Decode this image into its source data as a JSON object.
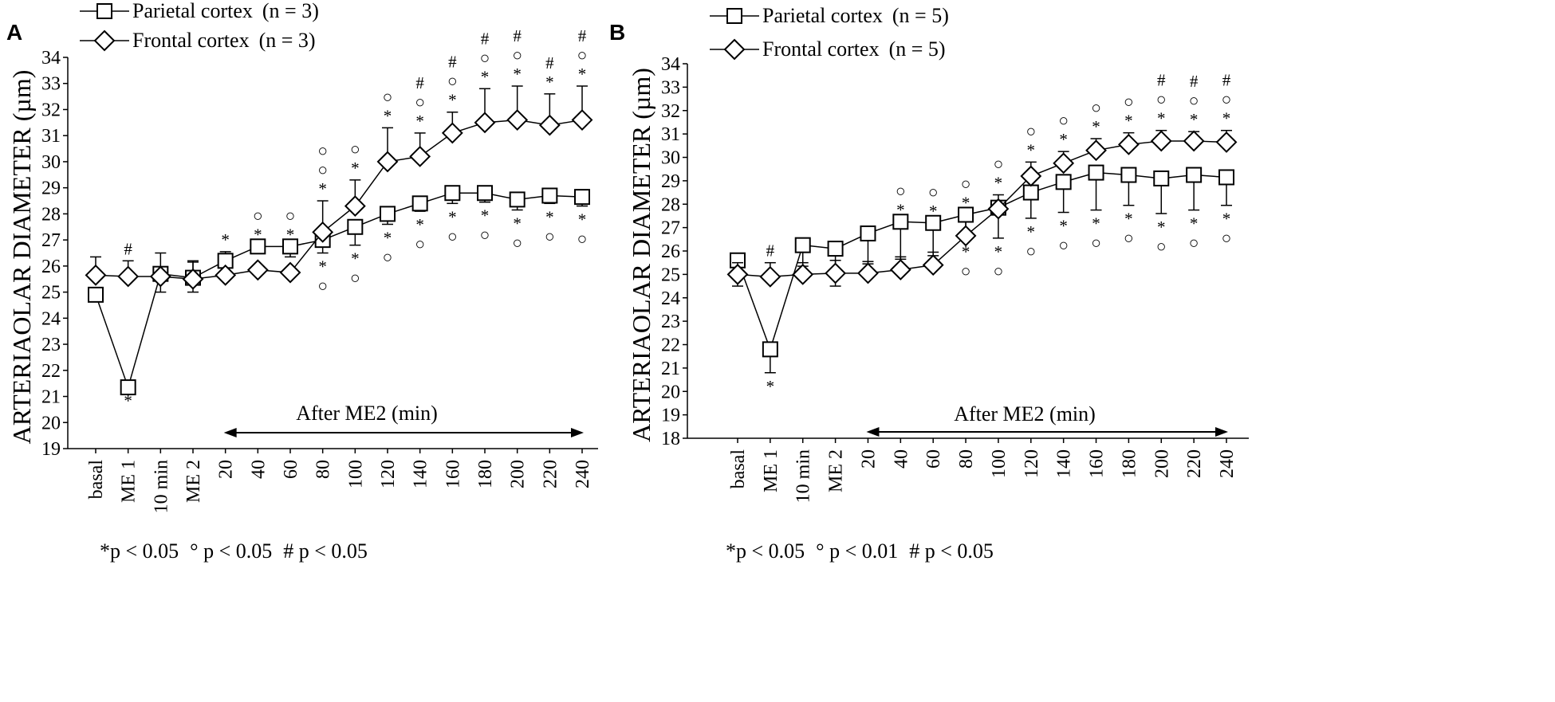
{
  "chart_data": [
    {
      "type": "line",
      "panel": "A",
      "ylabel": "ARTERIAOLAR DIAMETER (µm)",
      "ylim": [
        19,
        34
      ],
      "yticks": [
        19,
        20,
        21,
        22,
        23,
        24,
        25,
        26,
        27,
        28,
        29,
        30,
        31,
        32,
        33,
        34
      ],
      "categories": [
        "basal",
        "ME 1",
        "10 min",
        "ME 2",
        "20",
        "40",
        "60",
        "80",
        "100",
        "120",
        "140",
        "160",
        "180",
        "200",
        "220",
        "240"
      ],
      "series": [
        {
          "name": "Parietal cortex",
          "n_label": "(n = 3)",
          "marker": "square",
          "values": [
            24.9,
            21.35,
            25.7,
            25.55,
            26.2,
            26.75,
            26.75,
            27.0,
            27.5,
            28.0,
            28.4,
            28.8,
            28.8,
            28.55,
            28.7,
            28.65
          ],
          "err_up": [
            0,
            0,
            0.8,
            0.6,
            0.35,
            0,
            0,
            0,
            0,
            0,
            0,
            0,
            0,
            0,
            0,
            0
          ],
          "err_dn": [
            0,
            0,
            0,
            0,
            0,
            0,
            0.4,
            0.5,
            0.7,
            0.4,
            0.3,
            0.4,
            0.35,
            0.4,
            0.3,
            0.35
          ]
        },
        {
          "name": "Frontal cortex",
          "n_label": "(n = 3)",
          "marker": "diamond",
          "values": [
            25.65,
            25.6,
            25.6,
            25.5,
            25.65,
            25.85,
            25.75,
            27.3,
            28.3,
            30.0,
            30.2,
            31.1,
            31.5,
            31.6,
            31.4,
            31.6
          ],
          "err_up": [
            0.7,
            0.6,
            0,
            0.7,
            0,
            0,
            0,
            1.2,
            1.0,
            1.3,
            0.9,
            0.8,
            1.3,
            1.3,
            1.2,
            1.3
          ],
          "err_dn": [
            0,
            0,
            0.6,
            0.5,
            0,
            0,
            0,
            0,
            0,
            0,
            0,
            0,
            0,
            0,
            0,
            0
          ]
        }
      ],
      "annotations_above": [
        "",
        "#",
        "",
        "",
        "*",
        "○ *",
        "○ *",
        "○ ○ *",
        "○ *",
        "○ *",
        "# ○ *",
        "# ○ *",
        "# ○ *",
        "# ○ *",
        "# *",
        "# ○ *"
      ],
      "annotations_below": [
        "",
        "*",
        "",
        "",
        "",
        "",
        "",
        "* ○",
        "* ○",
        "* ○",
        "* ○",
        "* ○",
        "* ○",
        "* ○",
        "* ○",
        "* ○"
      ],
      "after_label": "After ME2 (min)",
      "footnote": {
        "a": "*p < 0.05",
        "b": "° p < 0.05",
        "c": "# p < 0.05"
      }
    },
    {
      "type": "line",
      "panel": "B",
      "ylabel": "ARTERIAOLAR DIAMETER (µm)",
      "ylim": [
        18,
        34
      ],
      "yticks": [
        18,
        19,
        20,
        21,
        22,
        23,
        24,
        25,
        26,
        27,
        28,
        29,
        30,
        31,
        32,
        33,
        34
      ],
      "categories": [
        "basal",
        "ME 1",
        "10 min",
        "ME 2",
        "20",
        "40",
        "60",
        "80",
        "100",
        "120",
        "140",
        "160",
        "180",
        "200",
        "220",
        "240"
      ],
      "series": [
        {
          "name": "Parietal cortex",
          "n_label": "(n = 5)",
          "marker": "square",
          "values": [
            25.6,
            21.8,
            26.25,
            26.1,
            26.75,
            27.25,
            27.2,
            27.55,
            27.85,
            28.5,
            28.95,
            29.35,
            29.25,
            29.1,
            29.25,
            29.15
          ],
          "err_up": [
            0,
            0,
            0,
            0,
            0,
            0,
            0,
            0,
            0,
            0,
            0,
            0,
            0,
            0,
            0,
            0
          ],
          "err_dn": [
            0,
            1.0,
            0.9,
            0.9,
            1.3,
            1.6,
            1.4,
            1.0,
            1.3,
            1.1,
            1.3,
            1.6,
            1.3,
            1.5,
            1.5,
            1.2
          ]
        },
        {
          "name": "Frontal cortex",
          "n_label": "(n = 5)",
          "marker": "diamond",
          "values": [
            25.0,
            24.9,
            25.0,
            25.05,
            25.05,
            25.2,
            25.4,
            26.65,
            27.8,
            29.2,
            29.75,
            30.3,
            30.55,
            30.7,
            30.7,
            30.65
          ],
          "err_up": [
            0.5,
            0.6,
            0.5,
            0.55,
            0.5,
            0.55,
            0.55,
            0.6,
            0.6,
            0.6,
            0.5,
            0.5,
            0.5,
            0.45,
            0.4,
            0.5
          ],
          "err_dn": [
            0.5,
            0,
            0,
            0.55,
            0,
            0,
            0,
            0,
            0,
            0,
            0,
            0,
            0,
            0,
            0,
            0
          ]
        }
      ],
      "annotations_above": [
        "",
        "#",
        "",
        "",
        "",
        "○ *",
        "○ *",
        "○ *",
        "○ *",
        "○ *",
        "○ *",
        "○ *",
        "○ *",
        "# ○ *",
        "# ○ *",
        "# ○ *"
      ],
      "annotations_below": [
        "",
        "*",
        "",
        "",
        "",
        "",
        "",
        "* ○",
        "* ○",
        "* ○",
        "* ○",
        "* ○",
        "* ○",
        "* ○",
        "* ○",
        "* ○"
      ],
      "after_label": "After ME2 (min)",
      "footnote": {
        "a": "*p < 0.05",
        "b": "° p < 0.01",
        "c": "# p < 0.05"
      }
    }
  ]
}
